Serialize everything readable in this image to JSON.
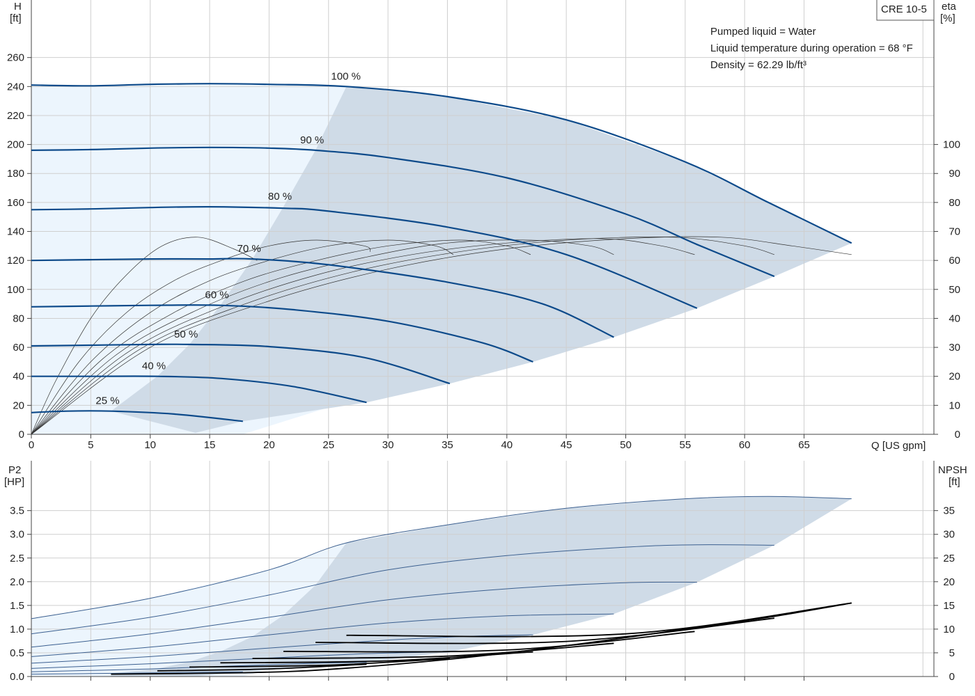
{
  "model_label": "CRE 10-5",
  "info_lines": [
    "Pumped liquid = Water",
    "Liquid temperature during operation = 68 °F",
    "Density = 62.29 lb/ft³"
  ],
  "top_axes": {
    "y_left_label": [
      "H",
      "[ft]"
    ],
    "y_right_label": [
      "eta",
      "[%]"
    ],
    "x_label": "Q [US gpm]",
    "x_ticks": [
      0,
      5,
      10,
      15,
      20,
      25,
      30,
      35,
      40,
      45,
      50,
      55,
      60,
      65
    ],
    "y_left_ticks": [
      0,
      20,
      40,
      60,
      80,
      100,
      120,
      140,
      160,
      180,
      200,
      220,
      240,
      260
    ],
    "y_right_ticks": [
      0,
      10,
      20,
      30,
      40,
      50,
      60,
      70,
      80,
      90,
      100
    ]
  },
  "bottom_axes": {
    "y_left_label": [
      "P2",
      "[HP]"
    ],
    "y_right_label": [
      "NPSH",
      "[ft]"
    ],
    "y_left_ticks": [
      "0.0",
      "0.5",
      "1.0",
      "1.5",
      "2.0",
      "2.5",
      "3.0",
      "3.5"
    ],
    "y_right_ticks": [
      0,
      5,
      10,
      15,
      20,
      25,
      30,
      35
    ]
  },
  "colors": {
    "pump_curve": "#0d4a8a",
    "area_light": "#ecf5fd",
    "area_dark": "#cfdbe7",
    "npsh_curve": "#000000"
  },
  "chart_data": [
    {
      "type": "line",
      "title": "",
      "xlabel": "Q [US gpm]",
      "ylabel": "H [ft]",
      "xlim": [
        0,
        76
      ],
      "ylim": [
        0,
        270
      ],
      "y2label": "eta [%]",
      "y2lim": [
        0,
        135
      ],
      "grid": true,
      "head_curves": [
        {
          "label": "100 %",
          "label_at": [
            26.5,
            240
          ],
          "points": [
            [
              0,
              241
            ],
            [
              5,
              240.5
            ],
            [
              10,
              241.5
            ],
            [
              15,
              242
            ],
            [
              20,
              241.5
            ],
            [
              26.5,
              240
            ],
            [
              35,
              233
            ],
            [
              45,
              217
            ],
            [
              55,
              188
            ],
            [
              62,
              160
            ],
            [
              69,
              132
            ]
          ]
        },
        {
          "label": "90 %",
          "label_at": [
            23.9,
            196
          ],
          "points": [
            [
              0,
              196
            ],
            [
              5,
              196.5
            ],
            [
              10,
              197.5
            ],
            [
              15,
              198
            ],
            [
              20,
              197.5
            ],
            [
              23.9,
              196
            ],
            [
              30,
              191
            ],
            [
              40,
              177
            ],
            [
              50,
              152
            ],
            [
              56,
              131
            ],
            [
              62.5,
              109
            ]
          ]
        },
        {
          "label": "80 %",
          "label_at": [
            21.2,
            157
          ],
          "points": [
            [
              0,
              155
            ],
            [
              5,
              155.5
            ],
            [
              10,
              156.5
            ],
            [
              15,
              157
            ],
            [
              21.2,
              156
            ],
            [
              25,
              154
            ],
            [
              35,
              143
            ],
            [
              45,
              124
            ],
            [
              56,
              87
            ]
          ]
        },
        {
          "label": "70 %",
          "label_at": [
            18.6,
            121
          ],
          "points": [
            [
              0,
              120
            ],
            [
              5,
              120.5
            ],
            [
              10,
              121
            ],
            [
              15,
              121
            ],
            [
              18.6,
              121
            ],
            [
              25,
              117
            ],
            [
              35,
              105
            ],
            [
              43,
              90
            ],
            [
              49,
              67
            ]
          ]
        },
        {
          "label": "60 %",
          "label_at": [
            15.9,
            89
          ],
          "points": [
            [
              0,
              88
            ],
            [
              5,
              88.5
            ],
            [
              10,
              89
            ],
            [
              15.9,
              89
            ],
            [
              22,
              86
            ],
            [
              30,
              78
            ],
            [
              38,
              63
            ],
            [
              42.2,
              50
            ]
          ]
        },
        {
          "label": "50 %",
          "label_at": [
            13.3,
            62
          ],
          "points": [
            [
              0,
              61
            ],
            [
              5,
              61.5
            ],
            [
              10,
              62
            ],
            [
              13.3,
              62
            ],
            [
              20,
              60.5
            ],
            [
              28,
              53
            ],
            [
              35.2,
              35
            ]
          ]
        },
        {
          "label": "40 %",
          "label_at": [
            10.6,
            40
          ],
          "points": [
            [
              0,
              40
            ],
            [
              5,
              40
            ],
            [
              10.6,
              40
            ],
            [
              16,
              38.5
            ],
            [
              22,
              33
            ],
            [
              28.2,
              22
            ]
          ]
        },
        {
          "label": "25 %",
          "label_at": [
            6.7,
            16
          ],
          "points": [
            [
              0,
              15
            ],
            [
              3,
              16
            ],
            [
              6.7,
              16
            ],
            [
              12,
              14
            ],
            [
              17.8,
              9
            ]
          ]
        }
      ],
      "efficiency_curves": [
        {
          "points": [
            [
              0,
              0
            ],
            [
              2,
              18
            ],
            [
              5,
              40
            ],
            [
              8,
              55
            ],
            [
              11,
              65
            ],
            [
              14,
              68
            ],
            [
              17,
              64
            ],
            [
              19,
              60
            ]
          ]
        },
        {
          "points": [
            [
              0,
              0
            ],
            [
              4,
              25
            ],
            [
              8,
              42
            ],
            [
              12,
              53
            ],
            [
              16,
              60
            ],
            [
              20,
              65
            ],
            [
              24,
              67
            ],
            [
              28,
              65
            ],
            [
              28.5,
              63
            ]
          ]
        },
        {
          "points": [
            [
              0,
              0
            ],
            [
              5,
              25
            ],
            [
              10,
              42
            ],
            [
              15,
              53
            ],
            [
              20,
              60
            ],
            [
              25,
              65
            ],
            [
              30,
              67
            ],
            [
              34,
              65
            ],
            [
              35.5,
              62
            ]
          ]
        },
        {
          "points": [
            [
              0,
              0
            ],
            [
              6,
              26
            ],
            [
              12,
              42
            ],
            [
              18,
              53
            ],
            [
              24,
              60
            ],
            [
              30,
              65
            ],
            [
              36,
              67
            ],
            [
              40,
              65
            ],
            [
              42,
              62
            ]
          ]
        },
        {
          "points": [
            [
              0,
              0
            ],
            [
              7,
              27
            ],
            [
              14,
              43
            ],
            [
              21,
              54
            ],
            [
              28,
              61
            ],
            [
              35,
              66
            ],
            [
              42,
              67
            ],
            [
              47,
              65
            ],
            [
              49,
              62
            ]
          ]
        },
        {
          "points": [
            [
              0,
              0
            ],
            [
              8,
              28
            ],
            [
              16,
              44
            ],
            [
              24,
              55
            ],
            [
              32,
              62
            ],
            [
              40,
              66
            ],
            [
              48,
              67.5
            ],
            [
              53,
              65
            ],
            [
              55.8,
              62
            ]
          ]
        },
        {
          "points": [
            [
              0,
              0
            ],
            [
              9,
              29
            ],
            [
              18,
              45
            ],
            [
              27,
              56
            ],
            [
              36,
              63
            ],
            [
              45,
              67
            ],
            [
              54,
              68
            ],
            [
              60,
              65
            ],
            [
              62.5,
              62
            ]
          ]
        },
        {
          "points": [
            [
              0,
              0
            ],
            [
              10,
              30
            ],
            [
              20,
              46
            ],
            [
              30,
              57
            ],
            [
              40,
              64
            ],
            [
              50,
              67.5
            ],
            [
              58,
              68
            ],
            [
              64,
              65
            ],
            [
              69,
              62
            ]
          ]
        }
      ],
      "power_curves": [
        {
          "points": [
            [
              0,
              1.22
            ],
            [
              10,
              1.65
            ],
            [
              20,
              2.25
            ],
            [
              26.5,
              2.82
            ],
            [
              35,
              3.2
            ],
            [
              45,
              3.55
            ],
            [
              55,
              3.75
            ],
            [
              62,
              3.8
            ],
            [
              69,
              3.75
            ]
          ]
        },
        {
          "points": [
            [
              0,
              0.9
            ],
            [
              10,
              1.25
            ],
            [
              20,
              1.72
            ],
            [
              30,
              2.25
            ],
            [
              40,
              2.55
            ],
            [
              50,
              2.73
            ],
            [
              56,
              2.78
            ],
            [
              62.5,
              2.77
            ]
          ]
        },
        {
          "points": [
            [
              0,
              0.62
            ],
            [
              10,
              0.9
            ],
            [
              20,
              1.25
            ],
            [
              30,
              1.62
            ],
            [
              40,
              1.85
            ],
            [
              50,
              1.98
            ],
            [
              56,
              1.99
            ]
          ]
        },
        {
          "points": [
            [
              0,
              0.42
            ],
            [
              10,
              0.62
            ],
            [
              20,
              0.88
            ],
            [
              30,
              1.13
            ],
            [
              40,
              1.28
            ],
            [
              49,
              1.32
            ]
          ]
        },
        {
          "points": [
            [
              0,
              0.28
            ],
            [
              10,
              0.42
            ],
            [
              20,
              0.6
            ],
            [
              30,
              0.77
            ],
            [
              37,
              0.85
            ],
            [
              42.2,
              0.88
            ]
          ]
        },
        {
          "points": [
            [
              0,
              0.17
            ],
            [
              10,
              0.27
            ],
            [
              20,
              0.39
            ],
            [
              28,
              0.48
            ],
            [
              35.2,
              0.52
            ]
          ]
        },
        {
          "points": [
            [
              0,
              0.1
            ],
            [
              10,
              0.16
            ],
            [
              18,
              0.23
            ],
            [
              24,
              0.28
            ],
            [
              28.2,
              0.3
            ]
          ]
        },
        {
          "points": [
            [
              0,
              0.05
            ],
            [
              8,
              0.07
            ],
            [
              14,
              0.09
            ],
            [
              17.8,
              0.1
            ]
          ]
        }
      ],
      "npsh_curves": [
        {
          "points": [
            [
              6.7,
              0.5
            ],
            [
              17.8,
              0.8
            ],
            [
              25,
              1.5
            ],
            [
              35,
              3.6
            ],
            [
              45,
              6.5
            ],
            [
              55,
              10
            ],
            [
              62,
              12.5
            ],
            [
              69,
              15.5
            ]
          ]
        },
        {
          "points": [
            [
              10.6,
              1.2
            ],
            [
              20,
              1.6
            ],
            [
              28.2,
              2.6
            ]
          ]
        },
        {
          "points": [
            [
              13.3,
              2.0
            ],
            [
              25,
              2.4
            ],
            [
              35.2,
              3.8
            ]
          ]
        },
        {
          "points": [
            [
              15.9,
              2.9
            ],
            [
              30,
              3.3
            ],
            [
              42.2,
              5.2
            ]
          ]
        },
        {
          "points": [
            [
              18.6,
              3.8
            ],
            [
              35,
              4.3
            ],
            [
              49,
              7.0
            ]
          ]
        },
        {
          "points": [
            [
              21.2,
              5.3
            ],
            [
              40,
              5.6
            ],
            [
              55.8,
              9.5
            ]
          ]
        },
        {
          "points": [
            [
              23.9,
              7.2
            ],
            [
              45,
              7.4
            ],
            [
              62.5,
              12.3
            ]
          ]
        },
        {
          "points": [
            [
              26.5,
              8.7
            ],
            [
              50,
              9.0
            ],
            [
              69,
              15.5
            ]
          ]
        }
      ]
    }
  ]
}
